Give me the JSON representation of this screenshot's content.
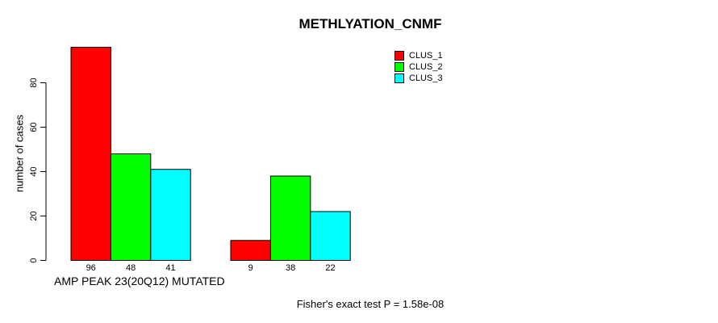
{
  "page": {
    "background": "#ffffff",
    "text_color": "#000000"
  },
  "chart_data": {
    "type": "bar",
    "title": "METHLYATION_CNMF",
    "ylabel": "number of cases",
    "xlabel": "AMP PEAK 23(20Q12) MUTATED",
    "annotation": "Fisher's exact test P = 1.58e-08",
    "yticks": [
      0,
      20,
      40,
      60,
      80
    ],
    "ylim": [
      0,
      96
    ],
    "grid": false,
    "legend_position": "top-right",
    "bar_border_color": "#000000",
    "group_count": 2,
    "series": [
      {
        "name": "CLUS_1",
        "color": "#ff0000",
        "values": [
          96,
          9
        ]
      },
      {
        "name": "CLUS_2",
        "color": "#00ff00",
        "values": [
          48,
          38
        ]
      },
      {
        "name": "CLUS_3",
        "color": "#00ffff",
        "values": [
          41,
          22
        ]
      }
    ],
    "bar_value_labels": [
      [
        96,
        48,
        41
      ],
      [
        9,
        38,
        22
      ]
    ]
  }
}
